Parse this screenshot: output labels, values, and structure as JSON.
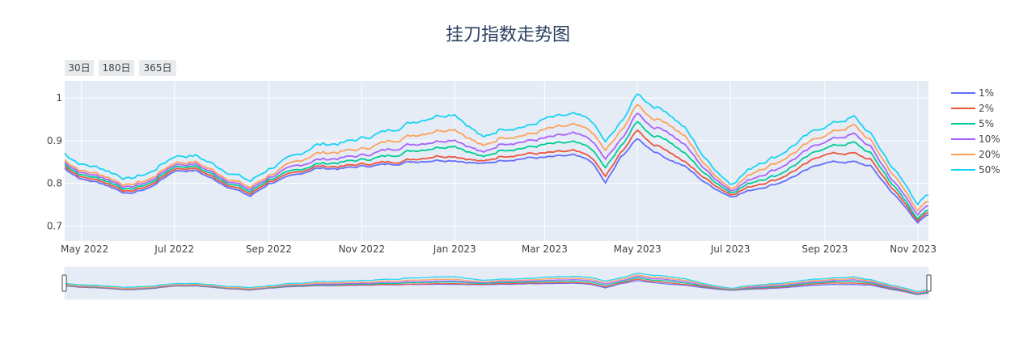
{
  "chart_data": {
    "type": "line",
    "title": "挂刀指数走势图",
    "xlabel": "",
    "ylabel": "",
    "ylim": [
      0.665,
      1.04
    ],
    "xlim": [
      "2022-04-20",
      "2023-11-08"
    ],
    "y_ticks": [
      "0.7",
      "0.8",
      "0.9",
      "1"
    ],
    "x_ticks": [
      "May 2022",
      "Jul 2022",
      "Sep 2022",
      "Nov 2022",
      "Jan 2023",
      "Mar 2023",
      "May 2023",
      "Jul 2023",
      "Sep 2023",
      "Nov 2023"
    ],
    "range_selector": [
      "30日",
      "180日",
      "365日"
    ],
    "range_slider": true,
    "grid": true,
    "legend_position": "right",
    "x": [
      "2022-04-20",
      "2022-05-01",
      "2022-05-15",
      "2022-06-01",
      "2022-06-15",
      "2022-07-01",
      "2022-07-15",
      "2022-08-01",
      "2022-08-20",
      "2022-09-01",
      "2022-09-20",
      "2022-10-01",
      "2022-10-20",
      "2022-11-01",
      "2022-11-20",
      "2022-12-01",
      "2022-12-20",
      "2023-01-01",
      "2023-01-20",
      "2023-02-01",
      "2023-02-20",
      "2023-03-01",
      "2023-03-20",
      "2023-04-01",
      "2023-04-10",
      "2023-04-20",
      "2023-05-01",
      "2023-05-10",
      "2023-05-20",
      "2023-06-01",
      "2023-06-15",
      "2023-07-01",
      "2023-07-20",
      "2023-08-01",
      "2023-08-20",
      "2023-09-01",
      "2023-09-20",
      "2023-10-01",
      "2023-10-15",
      "2023-11-01",
      "2023-11-08"
    ],
    "series": [
      {
        "name": "1%",
        "color": "#636efa",
        "values": [
          0.835,
          0.81,
          0.8,
          0.775,
          0.79,
          0.83,
          0.83,
          0.8,
          0.77,
          0.8,
          0.82,
          0.835,
          0.835,
          0.84,
          0.845,
          0.85,
          0.855,
          0.855,
          0.845,
          0.855,
          0.86,
          0.86,
          0.865,
          0.85,
          0.8,
          0.86,
          0.905,
          0.88,
          0.86,
          0.84,
          0.8,
          0.77,
          0.79,
          0.8,
          0.83,
          0.85,
          0.85,
          0.84,
          0.78,
          0.71,
          0.725
        ]
      },
      {
        "name": "2%",
        "color": "#ef553b",
        "values": [
          0.84,
          0.815,
          0.805,
          0.78,
          0.795,
          0.835,
          0.835,
          0.805,
          0.775,
          0.805,
          0.825,
          0.84,
          0.84,
          0.845,
          0.85,
          0.855,
          0.865,
          0.865,
          0.85,
          0.865,
          0.87,
          0.87,
          0.875,
          0.86,
          0.815,
          0.87,
          0.925,
          0.895,
          0.88,
          0.85,
          0.81,
          0.775,
          0.8,
          0.81,
          0.845,
          0.87,
          0.87,
          0.855,
          0.79,
          0.715,
          0.73
        ]
      },
      {
        "name": "5%",
        "color": "#00cc96",
        "values": [
          0.845,
          0.82,
          0.81,
          0.785,
          0.8,
          0.84,
          0.84,
          0.81,
          0.78,
          0.81,
          0.83,
          0.845,
          0.85,
          0.855,
          0.865,
          0.875,
          0.885,
          0.89,
          0.86,
          0.88,
          0.885,
          0.89,
          0.895,
          0.88,
          0.835,
          0.885,
          0.945,
          0.915,
          0.905,
          0.87,
          0.82,
          0.78,
          0.81,
          0.82,
          0.86,
          0.885,
          0.895,
          0.87,
          0.8,
          0.72,
          0.735
        ]
      },
      {
        "name": "10%",
        "color": "#ab63fa",
        "values": [
          0.85,
          0.825,
          0.815,
          0.79,
          0.805,
          0.845,
          0.845,
          0.815,
          0.785,
          0.815,
          0.84,
          0.855,
          0.86,
          0.865,
          0.88,
          0.89,
          0.9,
          0.905,
          0.87,
          0.895,
          0.9,
          0.905,
          0.915,
          0.9,
          0.855,
          0.9,
          0.965,
          0.935,
          0.925,
          0.89,
          0.83,
          0.785,
          0.82,
          0.835,
          0.875,
          0.9,
          0.915,
          0.885,
          0.81,
          0.73,
          0.745
        ]
      },
      {
        "name": "20%",
        "color": "#ffa15a",
        "values": [
          0.855,
          0.83,
          0.82,
          0.795,
          0.81,
          0.85,
          0.85,
          0.82,
          0.79,
          0.82,
          0.85,
          0.87,
          0.875,
          0.88,
          0.9,
          0.91,
          0.925,
          0.93,
          0.885,
          0.91,
          0.915,
          0.925,
          0.935,
          0.92,
          0.875,
          0.92,
          0.985,
          0.955,
          0.945,
          0.91,
          0.84,
          0.79,
          0.835,
          0.85,
          0.89,
          0.915,
          0.935,
          0.9,
          0.825,
          0.74,
          0.755
        ]
      },
      {
        "name": "50%",
        "color": "#19d3f3",
        "values": [
          0.87,
          0.845,
          0.835,
          0.81,
          0.825,
          0.865,
          0.865,
          0.835,
          0.805,
          0.835,
          0.865,
          0.89,
          0.895,
          0.905,
          0.925,
          0.94,
          0.96,
          0.965,
          0.905,
          0.93,
          0.935,
          0.95,
          0.96,
          0.945,
          0.895,
          0.94,
          1.01,
          0.985,
          0.97,
          0.93,
          0.855,
          0.8,
          0.85,
          0.865,
          0.91,
          0.935,
          0.955,
          0.915,
          0.84,
          0.755,
          0.77
        ]
      }
    ]
  }
}
